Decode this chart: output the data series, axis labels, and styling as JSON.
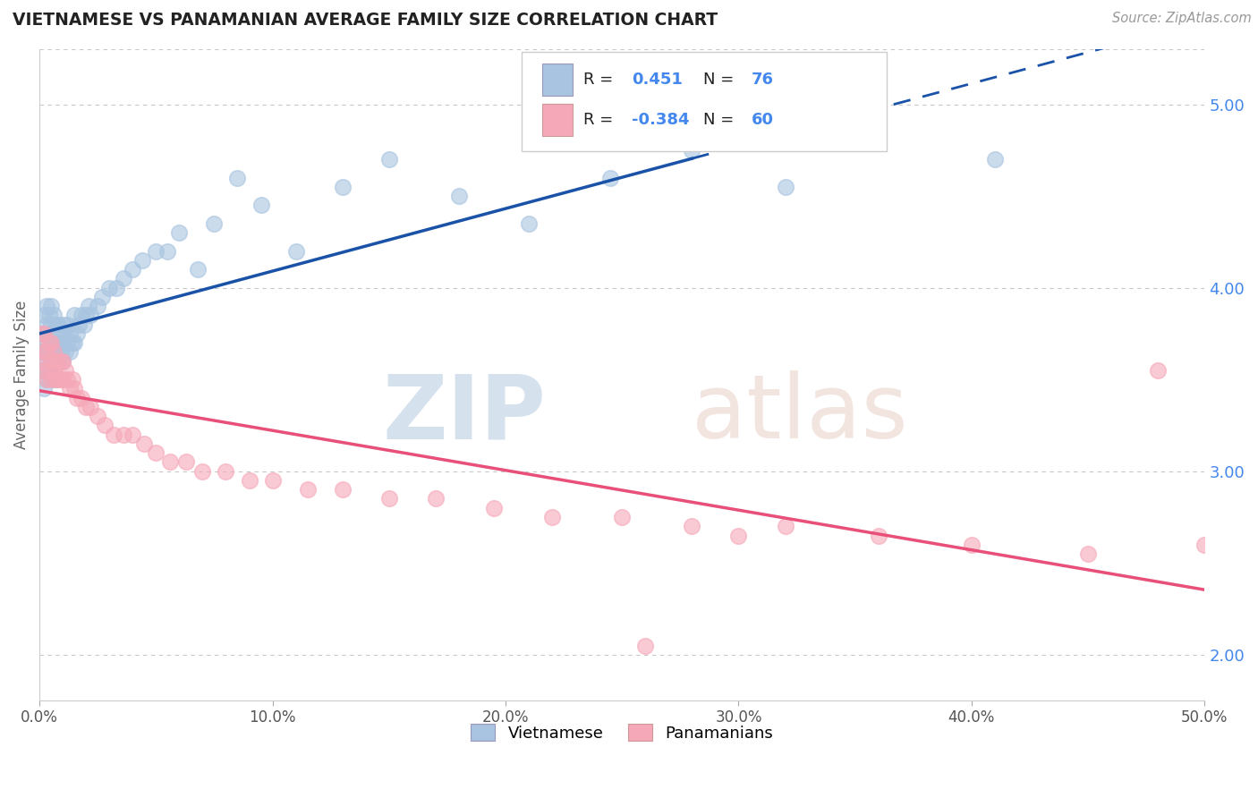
{
  "title": "VIETNAMESE VS PANAMANIAN AVERAGE FAMILY SIZE CORRELATION CHART",
  "source_text": "Source: ZipAtlas.com",
  "ylabel": "Average Family Size",
  "xlim": [
    0.0,
    0.5
  ],
  "ylim": [
    1.75,
    5.3
  ],
  "yticks": [
    2.0,
    3.0,
    4.0,
    5.0
  ],
  "xticks": [
    0.0,
    0.1,
    0.2,
    0.3,
    0.4,
    0.5
  ],
  "xtick_labels": [
    "0.0%",
    "10.0%",
    "20.0%",
    "30.0%",
    "40.0%",
    "50.0%"
  ],
  "r_vietnamese": 0.451,
  "n_vietnamese": 76,
  "r_panamanian": -0.384,
  "n_panamanian": 60,
  "blue_color": "#a8c4e0",
  "pink_color": "#f5a8b8",
  "blue_line_color": "#1a52a8",
  "pink_line_color": "#e8507a",
  "background_color": "#ffffff",
  "grid_color": "#c8c8c8",
  "title_color": "#222222",
  "right_tick_color": "#4488ee",
  "legend_r_color": "#4488ee",
  "vietnamese_x": [
    0.001,
    0.001,
    0.001,
    0.002,
    0.002,
    0.002,
    0.002,
    0.002,
    0.003,
    0.003,
    0.003,
    0.003,
    0.003,
    0.004,
    0.004,
    0.004,
    0.004,
    0.005,
    0.005,
    0.005,
    0.005,
    0.005,
    0.006,
    0.006,
    0.006,
    0.007,
    0.007,
    0.007,
    0.008,
    0.008,
    0.008,
    0.009,
    0.009,
    0.01,
    0.01,
    0.01,
    0.011,
    0.011,
    0.012,
    0.012,
    0.013,
    0.013,
    0.014,
    0.015,
    0.015,
    0.016,
    0.017,
    0.018,
    0.019,
    0.02,
    0.021,
    0.022,
    0.025,
    0.027,
    0.03,
    0.033,
    0.036,
    0.04,
    0.044,
    0.05,
    0.055,
    0.06,
    0.068,
    0.075,
    0.085,
    0.095,
    0.11,
    0.13,
    0.15,
    0.18,
    0.21,
    0.245,
    0.28,
    0.32,
    0.36,
    0.41
  ],
  "vietnamese_y": [
    3.55,
    3.65,
    3.75,
    3.45,
    3.55,
    3.65,
    3.75,
    3.85,
    3.5,
    3.6,
    3.7,
    3.8,
    3.9,
    3.55,
    3.65,
    3.75,
    3.85,
    3.5,
    3.6,
    3.7,
    3.8,
    3.9,
    3.55,
    3.7,
    3.85,
    3.5,
    3.65,
    3.8,
    3.6,
    3.7,
    3.8,
    3.65,
    3.75,
    3.6,
    3.7,
    3.8,
    3.65,
    3.75,
    3.7,
    3.8,
    3.65,
    3.75,
    3.7,
    3.7,
    3.85,
    3.75,
    3.8,
    3.85,
    3.8,
    3.85,
    3.9,
    3.85,
    3.9,
    3.95,
    4.0,
    4.0,
    4.05,
    4.1,
    4.15,
    4.2,
    4.2,
    4.3,
    4.1,
    4.35,
    4.6,
    4.45,
    4.2,
    4.55,
    4.7,
    4.5,
    4.35,
    4.6,
    4.75,
    4.55,
    4.85,
    4.7
  ],
  "panamanian_x": [
    0.001,
    0.001,
    0.002,
    0.002,
    0.002,
    0.003,
    0.003,
    0.004,
    0.004,
    0.005,
    0.005,
    0.005,
    0.006,
    0.006,
    0.007,
    0.007,
    0.008,
    0.008,
    0.009,
    0.009,
    0.01,
    0.01,
    0.011,
    0.012,
    0.013,
    0.014,
    0.015,
    0.016,
    0.018,
    0.02,
    0.022,
    0.025,
    0.028,
    0.032,
    0.036,
    0.04,
    0.045,
    0.05,
    0.056,
    0.063,
    0.07,
    0.08,
    0.09,
    0.1,
    0.115,
    0.13,
    0.15,
    0.17,
    0.195,
    0.22,
    0.25,
    0.28,
    0.32,
    0.36,
    0.4,
    0.45,
    0.5,
    0.3,
    0.48,
    0.26
  ],
  "panamanian_y": [
    3.6,
    3.75,
    3.55,
    3.65,
    3.75,
    3.5,
    3.65,
    3.55,
    3.7,
    3.5,
    3.6,
    3.7,
    3.55,
    3.65,
    3.5,
    3.6,
    3.5,
    3.6,
    3.5,
    3.6,
    3.5,
    3.6,
    3.55,
    3.5,
    3.45,
    3.5,
    3.45,
    3.4,
    3.4,
    3.35,
    3.35,
    3.3,
    3.25,
    3.2,
    3.2,
    3.2,
    3.15,
    3.1,
    3.05,
    3.05,
    3.0,
    3.0,
    2.95,
    2.95,
    2.9,
    2.9,
    2.85,
    2.85,
    2.8,
    2.75,
    2.75,
    2.7,
    2.7,
    2.65,
    2.6,
    2.55,
    2.6,
    2.65,
    3.55,
    2.05
  ]
}
